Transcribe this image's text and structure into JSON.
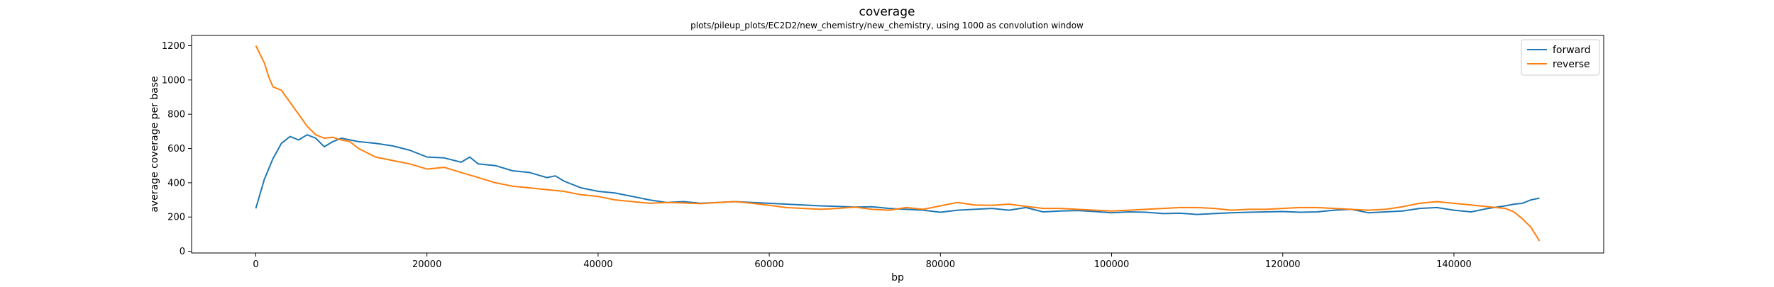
{
  "chart_data": {
    "type": "line",
    "title": "coverage",
    "subtitle": "plots/pileup_plots/EC2D2/new_chemistry/new_chemistry, using 1000 as convolution window",
    "xlabel": "bp",
    "ylabel": "average coverage per base",
    "xlim": [
      -7500,
      157500
    ],
    "ylim": [
      -10,
      1260
    ],
    "xticks": [
      0,
      20000,
      40000,
      60000,
      80000,
      100000,
      120000,
      140000
    ],
    "xtick_labels": [
      "0",
      "20000",
      "40000",
      "60000",
      "80000",
      "100000",
      "120000",
      "140000"
    ],
    "yticks": [
      0,
      200,
      400,
      600,
      800,
      1000,
      1200
    ],
    "ytick_labels": [
      "0",
      "200",
      "400",
      "600",
      "800",
      "1000",
      "1200"
    ],
    "legend_position": "top-right",
    "grid": false,
    "series": [
      {
        "name": "forward",
        "color": "#1f77b4",
        "x": [
          0,
          1000,
          2000,
          3000,
          4000,
          5000,
          6000,
          7000,
          8000,
          9000,
          10000,
          12000,
          14000,
          16000,
          18000,
          20000,
          22000,
          24000,
          25000,
          26000,
          28000,
          30000,
          32000,
          34000,
          35000,
          36000,
          38000,
          40000,
          42000,
          44000,
          46000,
          48000,
          50000,
          52000,
          54000,
          56000,
          58000,
          60000,
          62000,
          64000,
          66000,
          68000,
          70000,
          72000,
          74000,
          76000,
          78000,
          80000,
          82000,
          84000,
          86000,
          88000,
          90000,
          92000,
          94000,
          96000,
          98000,
          100000,
          102000,
          104000,
          106000,
          108000,
          110000,
          112000,
          114000,
          116000,
          118000,
          120000,
          122000,
          124000,
          126000,
          128000,
          130000,
          132000,
          134000,
          136000,
          138000,
          140000,
          142000,
          144000,
          146000,
          147000,
          148000,
          149000,
          150000
        ],
        "values": [
          250,
          420,
          540,
          630,
          670,
          650,
          680,
          660,
          610,
          640,
          660,
          640,
          630,
          615,
          590,
          550,
          545,
          520,
          550,
          510,
          500,
          470,
          460,
          430,
          440,
          410,
          370,
          350,
          340,
          320,
          300,
          285,
          290,
          280,
          285,
          290,
          285,
          280,
          275,
          270,
          265,
          262,
          258,
          260,
          250,
          245,
          240,
          228,
          240,
          245,
          250,
          240,
          255,
          230,
          235,
          238,
          232,
          225,
          230,
          228,
          220,
          222,
          215,
          220,
          225,
          228,
          230,
          232,
          228,
          230,
          240,
          245,
          225,
          230,
          235,
          250,
          255,
          240,
          230,
          250,
          265,
          275,
          280,
          300,
          310
        ]
      },
      {
        "name": "reverse",
        "color": "#ff7f0e",
        "x": [
          0,
          500,
          1000,
          1500,
          2000,
          3000,
          4000,
          5000,
          6000,
          7000,
          8000,
          9000,
          10000,
          11000,
          12000,
          14000,
          16000,
          18000,
          20000,
          22000,
          24000,
          26000,
          28000,
          30000,
          32000,
          34000,
          36000,
          38000,
          40000,
          42000,
          44000,
          46000,
          48000,
          50000,
          52000,
          54000,
          56000,
          58000,
          60000,
          62000,
          64000,
          66000,
          68000,
          70000,
          72000,
          74000,
          76000,
          78000,
          80000,
          82000,
          84000,
          86000,
          88000,
          90000,
          92000,
          94000,
          96000,
          98000,
          100000,
          102000,
          104000,
          106000,
          108000,
          110000,
          112000,
          114000,
          116000,
          118000,
          120000,
          122000,
          124000,
          126000,
          128000,
          130000,
          132000,
          134000,
          136000,
          138000,
          140000,
          142000,
          144000,
          146000,
          147000,
          148000,
          149000,
          150000
        ],
        "values": [
          1200,
          1150,
          1100,
          1020,
          960,
          940,
          870,
          800,
          730,
          680,
          660,
          665,
          650,
          640,
          600,
          550,
          530,
          510,
          480,
          490,
          460,
          430,
          400,
          380,
          370,
          360,
          350,
          330,
          320,
          300,
          290,
          280,
          285,
          282,
          278,
          285,
          290,
          280,
          268,
          255,
          250,
          245,
          250,
          258,
          245,
          240,
          255,
          245,
          265,
          285,
          270,
          268,
          275,
          262,
          250,
          250,
          245,
          240,
          235,
          240,
          245,
          250,
          255,
          255,
          250,
          240,
          245,
          245,
          250,
          255,
          255,
          250,
          245,
          240,
          245,
          260,
          280,
          290,
          280,
          270,
          260,
          250,
          230,
          190,
          140,
          60
        ]
      }
    ]
  }
}
